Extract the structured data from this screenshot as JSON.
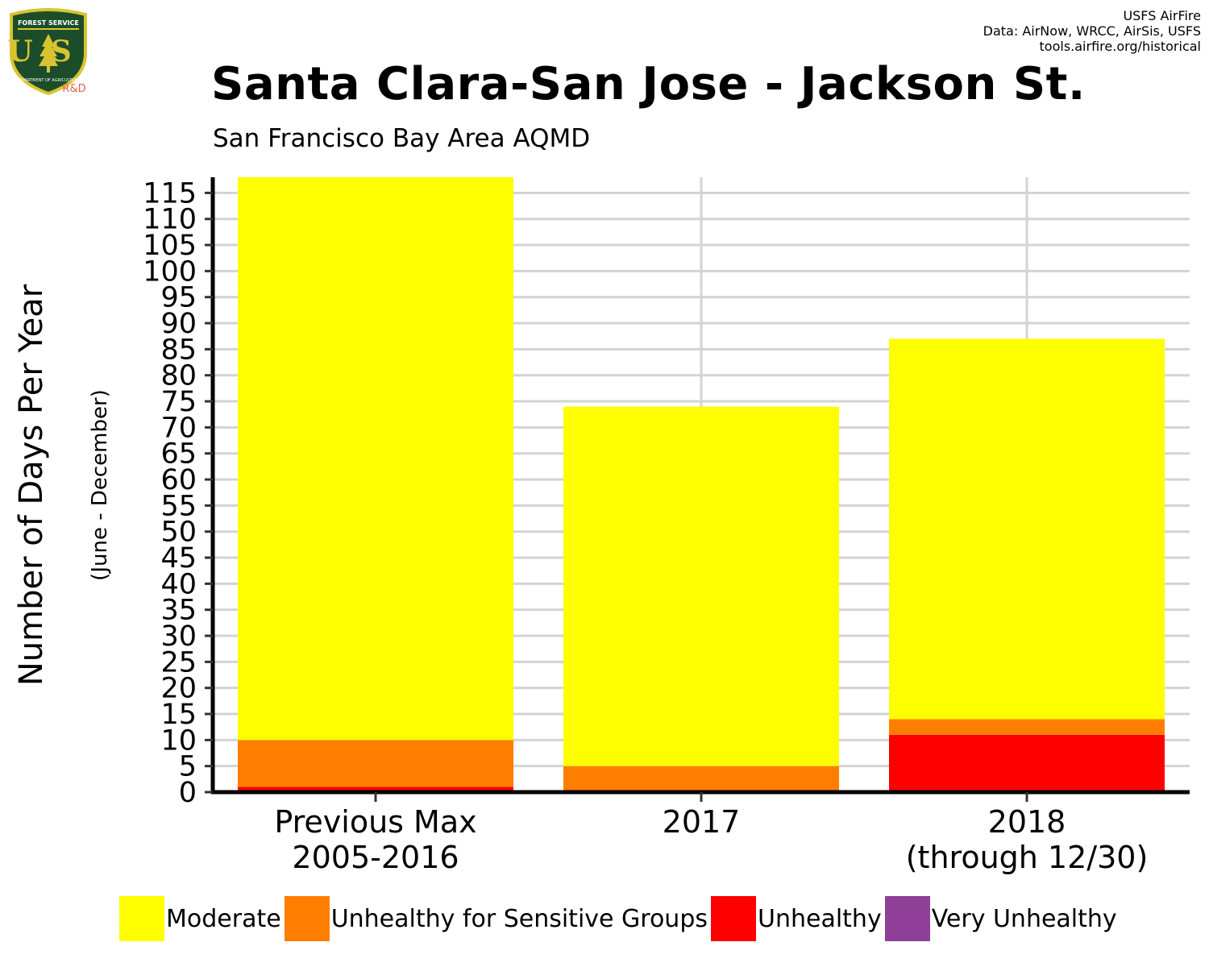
{
  "header": {
    "title": "Santa Clara-San Jose - Jackson St.",
    "subtitle": "San Francisco Bay Area AQMD",
    "credits": [
      "USFS AirFire",
      "Data: AirNow, WRCC, AirSis, USFS",
      "tools.airfire.org/historical"
    ]
  },
  "logo": {
    "top_text": "FOREST SERVICE",
    "letters": "US",
    "bottom_text": "DEPARTMENT OF AGRICULTURE",
    "badge": "R&D",
    "colors": {
      "shield": "#1b4d2a",
      "border": "#d9c430",
      "letters": "#d9c430",
      "badge": "#e8604a"
    }
  },
  "chart_data": {
    "type": "bar",
    "stacked": true,
    "title": "Santa Clara-San Jose - Jackson St.",
    "subtitle": "San Francisco Bay Area AQMD",
    "ylabel": "Number of Days Per Year",
    "ylabel_sub": "(June - December)",
    "xlabel": "",
    "categories": [
      [
        "Previous Max",
        "2005-2016"
      ],
      [
        "2017"
      ],
      [
        "2018",
        "(through 12/30)"
      ]
    ],
    "ylim": [
      0,
      118
    ],
    "yticks": [
      0,
      5,
      10,
      15,
      20,
      25,
      30,
      35,
      40,
      45,
      50,
      55,
      60,
      65,
      70,
      75,
      80,
      85,
      90,
      95,
      100,
      105,
      110,
      115
    ],
    "grid": true,
    "legend_position": "bottom",
    "series": [
      {
        "name": "Unhealthy",
        "color": "#ff0000",
        "values": [
          1,
          0,
          11
        ]
      },
      {
        "name": "Unhealthy for Sensitive Groups",
        "color": "#ff7e00",
        "values": [
          9,
          5,
          3
        ]
      },
      {
        "name": "Moderate",
        "color": "#ffff00",
        "values": [
          108,
          69,
          73
        ]
      },
      {
        "name": "Very Unhealthy",
        "color": "#8f3f97",
        "values": [
          0,
          0,
          0
        ]
      }
    ],
    "legend_order": [
      "Moderate",
      "Unhealthy for Sensitive Groups",
      "Unhealthy",
      "Very Unhealthy"
    ]
  }
}
